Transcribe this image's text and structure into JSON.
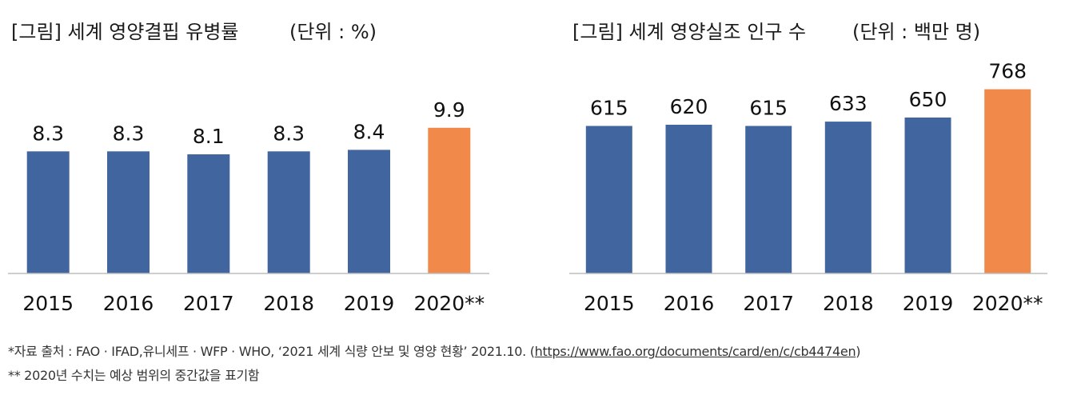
{
  "colors": {
    "bar": "#41659f",
    "highlight": "#f0894a",
    "baseline": "#bdbdbd"
  },
  "chart_data": [
    {
      "type": "bar",
      "title": "[그림] 세계 영양결핍 유병률",
      "unit": "(단위 : %)",
      "categories": [
        "2015",
        "2016",
        "2017",
        "2018",
        "2019",
        "2020**"
      ],
      "values": [
        8.3,
        8.3,
        8.1,
        8.3,
        8.4,
        9.9
      ],
      "value_labels": [
        "8.3",
        "8.3",
        "8.1",
        "8.3",
        "8.4",
        "9.9"
      ],
      "highlight_index": 5,
      "ylim": [
        0,
        15
      ],
      "grid": false,
      "legend": "none"
    },
    {
      "type": "bar",
      "title": "[그림] 세계 영양실조 인구 수",
      "unit": "(단위 : 백만 명)",
      "categories": [
        "2015",
        "2016",
        "2017",
        "2018",
        "2019",
        "2020**"
      ],
      "values": [
        615,
        620,
        615,
        633,
        650,
        768
      ],
      "value_labels": [
        "615",
        "620",
        "615",
        "633",
        "650",
        "768"
      ],
      "highlight_index": 5,
      "ylim": [
        0,
        1000
      ],
      "grid": false,
      "legend": "none"
    }
  ],
  "footnotes": {
    "source_prefix": "*자료 출처 : FAO · IFAD,유니세프 · WFP · WHO, ‘2021 세계 식량 안보 및 영양 현황’ 2021.10. (",
    "source_url": "https://www.fao.org/documents/card/en/c/cb4474en",
    "source_suffix": ")",
    "note": "** 2020년 수치는 예상 범위의 중간값을 표기함"
  }
}
